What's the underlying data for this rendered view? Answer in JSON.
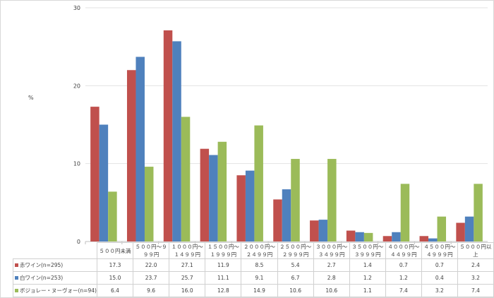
{
  "chart_data": {
    "type": "bar",
    "ylabel": "%",
    "ylim": [
      0,
      30
    ],
    "yticks": [
      "0",
      "10",
      "20",
      "30"
    ],
    "grid": true,
    "legend": "table-below",
    "categories": [
      "５００円未満",
      "５００円～９９９円",
      "１０００円～１４９９円",
      "１５００円～１９９９円",
      "２０００円～２４９９円",
      "２５００円～２９９９円",
      "３０００円～３４９９円",
      "３５００円～３９９９円",
      "４０００円～４４９９円",
      "４５００円～４９９９円",
      "５０００円以上"
    ],
    "series": [
      {
        "name": "赤ワイン(n=295)",
        "color": "#c0504d",
        "values": [
          "17.3",
          "22.0",
          "27.1",
          "11.9",
          "8.5",
          "5.4",
          "2.7",
          "1.4",
          "0.7",
          "0.7",
          "2.4"
        ]
      },
      {
        "name": "白ワイン(n=253)",
        "color": "#4f81bd",
        "values": [
          "15.0",
          "23.7",
          "25.7",
          "11.1",
          "9.1",
          "6.7",
          "2.8",
          "1.2",
          "1.2",
          "0.4",
          "3.2"
        ]
      },
      {
        "name": "ボジョレー・ヌーヴォー(n=94)",
        "color": "#9bbb59",
        "values": [
          "6.4",
          "9.6",
          "16.0",
          "12.8",
          "14.9",
          "10.6",
          "10.6",
          "1.1",
          "7.4",
          "3.2",
          "7.4"
        ]
      }
    ]
  }
}
